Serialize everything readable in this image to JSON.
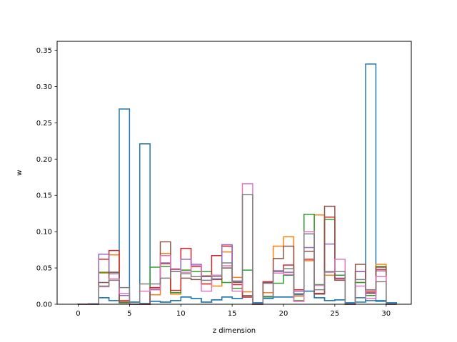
{
  "chart_data": {
    "type": "histogram-step",
    "xlabel": "z dimension",
    "ylabel": "w",
    "xlim": [
      -2.05,
      32.45
    ],
    "ylim": [
      0.0,
      0.3623
    ],
    "xticks": [
      0,
      5,
      10,
      15,
      20,
      25,
      30
    ],
    "yticks": [
      0.0,
      0.05,
      0.1,
      0.15,
      0.2,
      0.25,
      0.3,
      0.35
    ],
    "ytick_format": 2,
    "bin_edges": [
      0,
      1,
      2,
      3,
      4,
      5,
      6,
      7,
      8,
      9,
      10,
      11,
      12,
      13,
      14,
      15,
      16,
      17,
      18,
      19,
      20,
      21,
      22,
      23,
      24,
      25,
      26,
      27,
      28,
      29,
      30,
      31
    ],
    "series": [
      {
        "color": "#1f77b4",
        "values": [
          0.0003,
          0.0005,
          0.009,
          0.005,
          0.269,
          0.003,
          0.221,
          0.004,
          0.003,
          0.005,
          0.01,
          0.008,
          0.003,
          0.006,
          0.01,
          0.008,
          0.01,
          0.002,
          0.008,
          0.01,
          0.01,
          0.013,
          0.018,
          0.009,
          0.005,
          0.006,
          0.002,
          0.003,
          0.331,
          0.005,
          0.002
        ]
      },
      {
        "color": "#1f77b4",
        "values": [
          0.0002,
          0.0005,
          0.009,
          0.005,
          0.002,
          0.003,
          0.001,
          0.004,
          0.003,
          0.005,
          0.01,
          0.008,
          0.003,
          0.006,
          0.01,
          0.008,
          0.01,
          0.002,
          0.008,
          0.01,
          0.01,
          0.013,
          0.018,
          0.009,
          0.005,
          0.006,
          0.002,
          0.009,
          0.005,
          0.004,
          0.002
        ]
      },
      {
        "color": "#ff7f0e",
        "values": [
          0.0,
          0.0,
          0.043,
          0.068,
          0.003,
          0.0,
          0.0,
          0.013,
          0.07,
          0.014,
          0.047,
          0.052,
          0.028,
          0.025,
          0.072,
          0.037,
          0.017,
          0.0,
          0.016,
          0.08,
          0.093,
          0.011,
          0.06,
          0.123,
          0.04,
          0.04,
          0.0,
          0.03,
          0.012,
          0.055,
          0.0
        ]
      },
      {
        "color": "#2ca02c",
        "values": [
          0.0,
          0.0,
          0.044,
          0.044,
          0.002,
          0.0,
          0.0,
          0.051,
          0.052,
          0.016,
          0.047,
          0.045,
          0.045,
          0.04,
          0.03,
          0.022,
          0.047,
          0.0,
          0.01,
          0.029,
          0.04,
          0.005,
          0.124,
          0.027,
          0.117,
          0.04,
          0.0,
          0.03,
          0.012,
          0.052,
          0.0
        ]
      },
      {
        "color": "#d62728",
        "values": [
          0.0,
          0.0,
          0.062,
          0.074,
          0.005,
          0.0,
          0.0,
          0.023,
          0.056,
          0.019,
          0.077,
          0.052,
          0.028,
          0.067,
          0.08,
          0.027,
          0.01,
          0.0,
          0.031,
          0.046,
          0.054,
          0.02,
          0.062,
          0.015,
          0.12,
          0.035,
          0.0,
          0.045,
          0.018,
          0.048,
          0.0
        ]
      },
      {
        "color": "#9467bd",
        "values": [
          0.0,
          0.0,
          0.069,
          0.042,
          0.012,
          0.0,
          0.0,
          0.02,
          0.057,
          0.045,
          0.062,
          0.055,
          0.038,
          0.035,
          0.082,
          0.032,
          0.012,
          0.0,
          0.029,
          0.046,
          0.044,
          0.018,
          0.078,
          0.014,
          0.083,
          0.036,
          0.0,
          0.045,
          0.016,
          0.046,
          0.0
        ]
      },
      {
        "color": "#8c564b",
        "values": [
          0.0,
          0.0,
          0.03,
          0.044,
          0.003,
          0.0,
          0.0,
          0.021,
          0.086,
          0.048,
          0.036,
          0.034,
          0.039,
          0.034,
          0.05,
          0.03,
          0.012,
          0.0,
          0.03,
          0.063,
          0.08,
          0.004,
          0.073,
          0.014,
          0.135,
          0.033,
          0.0,
          0.055,
          0.015,
          0.051,
          0.0
        ]
      },
      {
        "color": "#e377c2",
        "values": [
          0.0,
          0.0,
          0.024,
          0.035,
          0.015,
          0.0,
          0.018,
          0.021,
          0.067,
          0.049,
          0.044,
          0.053,
          0.018,
          0.04,
          0.053,
          0.018,
          0.166,
          0.0,
          0.011,
          0.043,
          0.041,
          0.004,
          0.1,
          0.026,
          0.044,
          0.062,
          0.0,
          0.025,
          0.008,
          0.038,
          0.0
        ]
      },
      {
        "color": "#7f7f7f",
        "values": [
          0.0,
          0.0,
          0.025,
          0.033,
          0.023,
          0.0,
          0.028,
          0.028,
          0.036,
          0.045,
          0.042,
          0.038,
          0.033,
          0.038,
          0.057,
          0.031,
          0.151,
          0.0,
          0.011,
          0.045,
          0.049,
          0.015,
          0.097,
          0.02,
          0.045,
          0.045,
          0.0,
          0.034,
          0.02,
          0.031,
          0.0
        ]
      }
    ]
  }
}
